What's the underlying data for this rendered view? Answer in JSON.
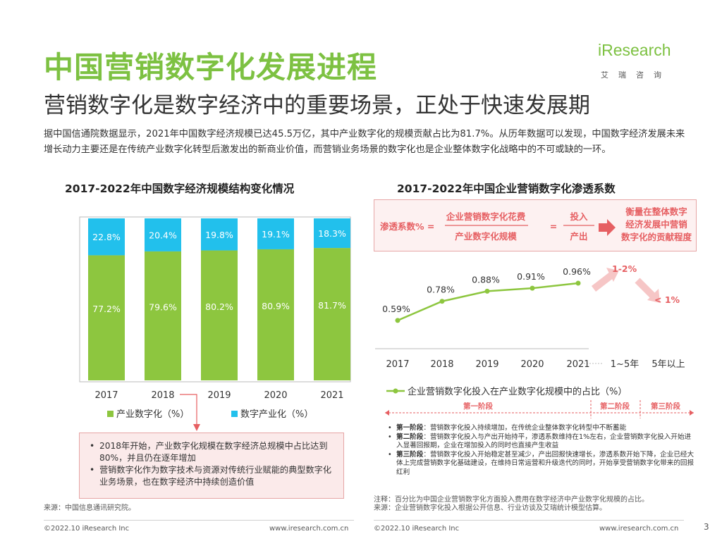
{
  "title": "中国营销数字化发展进程",
  "subtitle": "营销数字化是数字经济中的重要场景，正处于快速发展期",
  "logo": {
    "main": "iResearch",
    "sub": "艾瑞咨询"
  },
  "intro": "据中国信通院数据显示，2021年中国数字经济规模已达45.5万亿，其中产业数字化的规模贡献占比为81.7%。从历年数据可以发现，中国数字经济发展未来增长动力主要还是在传统产业数字化转型后激发出的新商业价值，而营销业务场景的数字化也是企业整体数字化战略中的不可或缺的一环。",
  "colors": {
    "green": "#8dc63f",
    "blue": "#22c0ec",
    "pink": "#e65f62",
    "title_green": "#7dc142"
  },
  "chart_data": [
    {
      "type": "bar",
      "stacked": true,
      "percent": true,
      "title": "2017-2022年中国数字经济规模结构变化情况",
      "categories": [
        "2017",
        "2018",
        "2019",
        "2020",
        "2021"
      ],
      "series": [
        {
          "name": "产业数字化（%）",
          "values": [
            77.2,
            79.6,
            80.2,
            80.9,
            81.7
          ],
          "labels": [
            "77.2%",
            "79.6%",
            "80.2%",
            "80.9%",
            "81.7%"
          ]
        },
        {
          "name": "数字产业化（%）",
          "values": [
            22.8,
            20.4,
            19.8,
            19.1,
            18.3
          ],
          "labels": [
            "22.8%",
            "20.4%",
            "19.8%",
            "19.1%",
            "18.3%"
          ]
        }
      ],
      "ylim": [
        0,
        100
      ],
      "legend": "bottom"
    },
    {
      "type": "line",
      "title": "2017-2022年中国企业营销数字化渗透系数",
      "categories": [
        "2017",
        "2018",
        "2019",
        "2020",
        "2021"
      ],
      "series": [
        {
          "name": "企业营销数字化投入在产业数字化规模中的占比（%）",
          "values": [
            0.59,
            0.78,
            0.88,
            0.91,
            0.96
          ],
          "labels": [
            "0.59%",
            "0.78%",
            "0.88%",
            "0.91%",
            "0.96%"
          ]
        }
      ],
      "forecast": [
        {
          "label": "1~5年",
          "value_text": "1-2%"
        },
        {
          "label": "5年以上",
          "value_text": "< 1%"
        }
      ],
      "legend": "bottom"
    }
  ],
  "left_note": [
    "2018年开始，产业数字化规模在数字经济总规模中占比达到80%，并且仍在逐年增加",
    "营销数字化作为数字技术与资源对传统行业赋能的典型数字化业务场景，也在数字经济中持续创造价值"
  ],
  "formula": {
    "lhs": "渗透系数% =",
    "num1": "企业营销数字化花费",
    "den1": "产业数字化规模",
    "eq": "=",
    "num2": "投入",
    "den2": "产出",
    "result": "衡量在整体数字经济发展中营销数字化的贡献程度"
  },
  "stages": {
    "labels": [
      "第一阶段",
      "第二阶段",
      "第三阶段"
    ],
    "notes": [
      {
        "head": "第一阶段",
        "text": "：营销数字化投入持续增加，在传统企业整体数字化转型中不断蓄能"
      },
      {
        "head": "第二阶段",
        "text": "：营销数字化投入与产出开始持平，渗透系数维持在1%左右，企业营销数字化投入开始进入显著回报期，企业在增加投入的同时也直接产生收益"
      },
      {
        "head": "第三阶段",
        "text": "：营销数字化投入开始稳定甚至减少，产出回报快速增长，渗透系数开始下降，企业已经大体上完成营销数字化基础建设，在维持日常运营和升级迭代的同时，开始享受营销数字化带来的回报红利"
      }
    ]
  },
  "notes": {
    "note": "注释：百分比为中国企业营销数字化方面投入费用在数字经济中产业数字化规模的占比。",
    "source": "来源：企业营销数字化投入根据公开信息、行业访谈及艾瑞统计模型估算。"
  },
  "source_left": "来源：中国信息通讯研究院。",
  "footer": {
    "left_copyright": "©2022.10 iResearch Inc",
    "left_url": "www.iresearch.com.cn",
    "right_copyright": "©2022.10 iResearch Inc",
    "right_url": "www.iresearch.com.cn",
    "page": "3"
  }
}
